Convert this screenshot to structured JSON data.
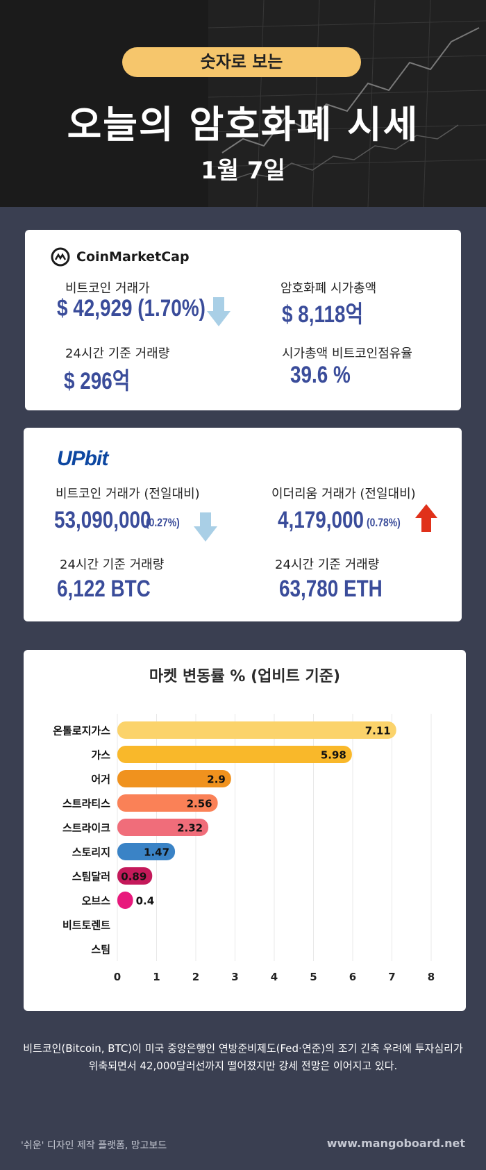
{
  "header": {
    "pill": "숫자로 보는",
    "title": "오늘의 암호화폐 시세",
    "date": "1월 7일"
  },
  "coinmarketcap": {
    "logo": "CoinMarketCap",
    "btc_price_label": "비트코인 거래가",
    "btc_price_value": "$ 42,929  (1.70%)",
    "btc_direction": "down",
    "market_cap_label": "암호화폐 시가총액",
    "market_cap_value": "$ 8,118억",
    "volume_label": "24시간 기준 거래량",
    "volume_value": "$ 296억",
    "dominance_label": "시가총액 비트코인점유율",
    "dominance_value": "39.6 %"
  },
  "upbit": {
    "logo": "UPbit",
    "btc_price_label": "비트코인 거래가 (전일대비)",
    "btc_price_value": "53,090,000",
    "btc_change": "(0.27%)",
    "btc_direction": "down",
    "eth_price_label": "이더리움 거래가 (전일대비)",
    "eth_price_value": "4,179,000",
    "eth_change": "(0.78%)",
    "eth_direction": "up",
    "btc_volume_label": "24시간 기준 거래량",
    "btc_volume_value": "6,122 BTC",
    "eth_volume_label": "24시간 기준 거래량",
    "eth_volume_value": "63,780 ETH"
  },
  "chart_data": {
    "type": "bar",
    "orientation": "horizontal",
    "title": "마켓 변동률 % (업비트 기준)",
    "categories": [
      "온톨로지가스",
      "가스",
      "어거",
      "스트라티스",
      "스트라이크",
      "스토리지",
      "스팀달러",
      "오브스",
      "비트토렌트",
      "스팀"
    ],
    "values": [
      7.11,
      5.98,
      2.9,
      2.56,
      2.32,
      1.47,
      0.89,
      0.4,
      0,
      0
    ],
    "value_labels": [
      "7.11",
      "5.98",
      "2.9",
      "2.56",
      "2.32",
      "1.47",
      "0.89",
      "0.4",
      "",
      ""
    ],
    "colors": [
      "#fbd36b",
      "#f9b82a",
      "#f0921e",
      "#fa8157",
      "#f06d7a",
      "#3a83c6",
      "#c4195a",
      "#e8197c",
      "#cccccc",
      "#cccccc"
    ],
    "xlim": [
      0,
      8
    ],
    "xticks": [
      "0",
      "1",
      "2",
      "3",
      "4",
      "5",
      "6",
      "7",
      "8"
    ],
    "grid": true
  },
  "footer": {
    "note_line1": "비트코인(Bitcoin, BTC)이 미국 중앙은행인 연방준비제도(Fed·연준)의 조기 긴축 우려에 투자심리가",
    "note_line2": "위축되면서 42,000달러선까지 떨어졌지만 강세 전망은 이어지고 있다.",
    "credit": "'쉬운' 디자인 제작 플랫폼, 망고보드",
    "site": "www.mangoboard.net"
  }
}
